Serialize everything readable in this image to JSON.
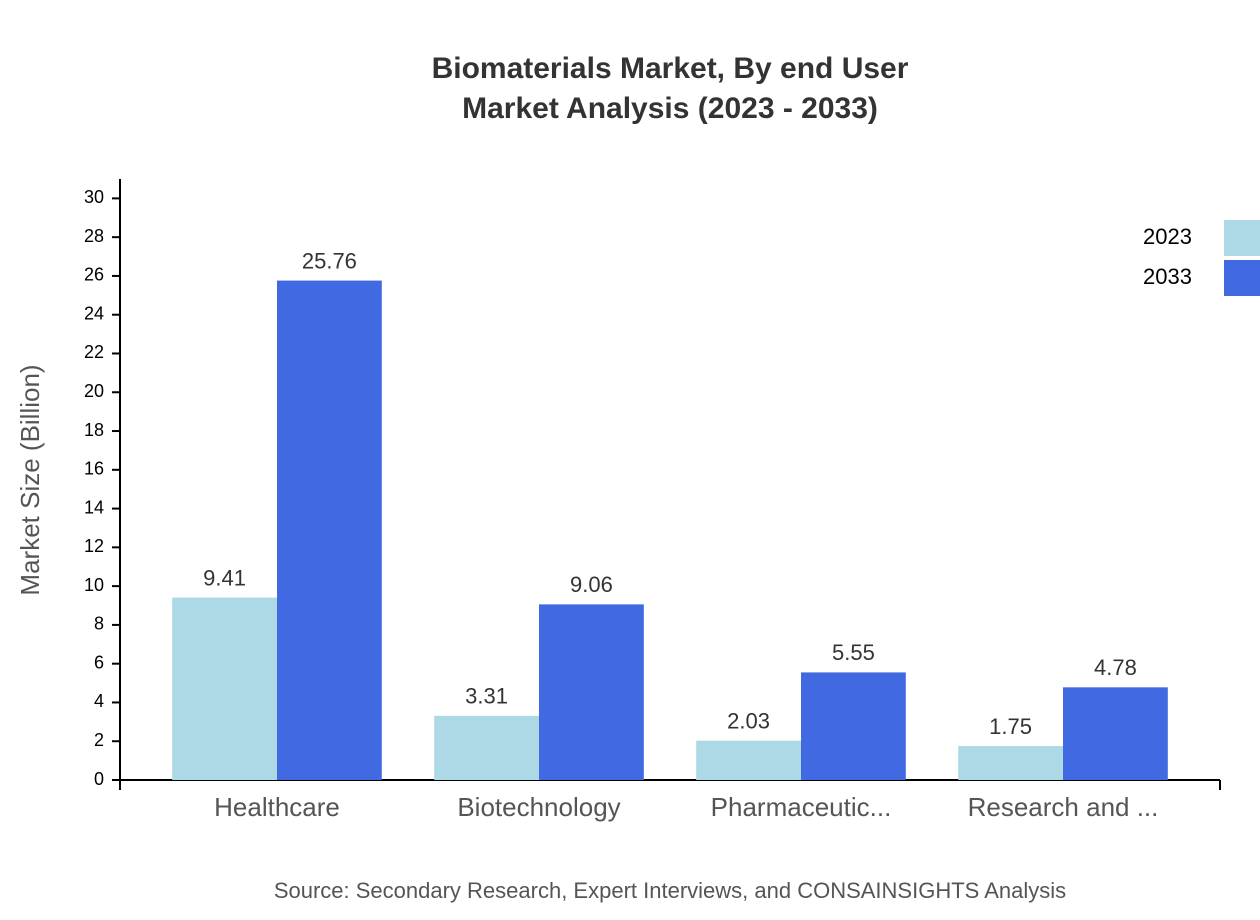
{
  "chart_data": {
    "type": "bar",
    "title": "Biomaterials Market, By end User",
    "subtitle": "Market Analysis (2023 - 2033)",
    "y_label": "Market Size (Billion)",
    "source": "Source: Secondary Research, Expert Interviews, and CONSAINSIGHTS Analysis",
    "categories": [
      "Healthcare",
      "Biotechnology",
      "Pharmaceutic...",
      "Research and ..."
    ],
    "series": [
      {
        "name": "2023",
        "color": "#add8e6",
        "values": [
          9.41,
          3.31,
          2.03,
          1.75
        ]
      },
      {
        "name": "2033",
        "color": "#4169e1",
        "values": [
          25.76,
          9.06,
          5.55,
          4.78
        ]
      }
    ],
    "ylim": [
      0,
      31
    ],
    "yticks": [
      0,
      2,
      4,
      6,
      8,
      10,
      12,
      14,
      16,
      18,
      20,
      22,
      24,
      26,
      28,
      30
    ],
    "legend": "top-right"
  }
}
